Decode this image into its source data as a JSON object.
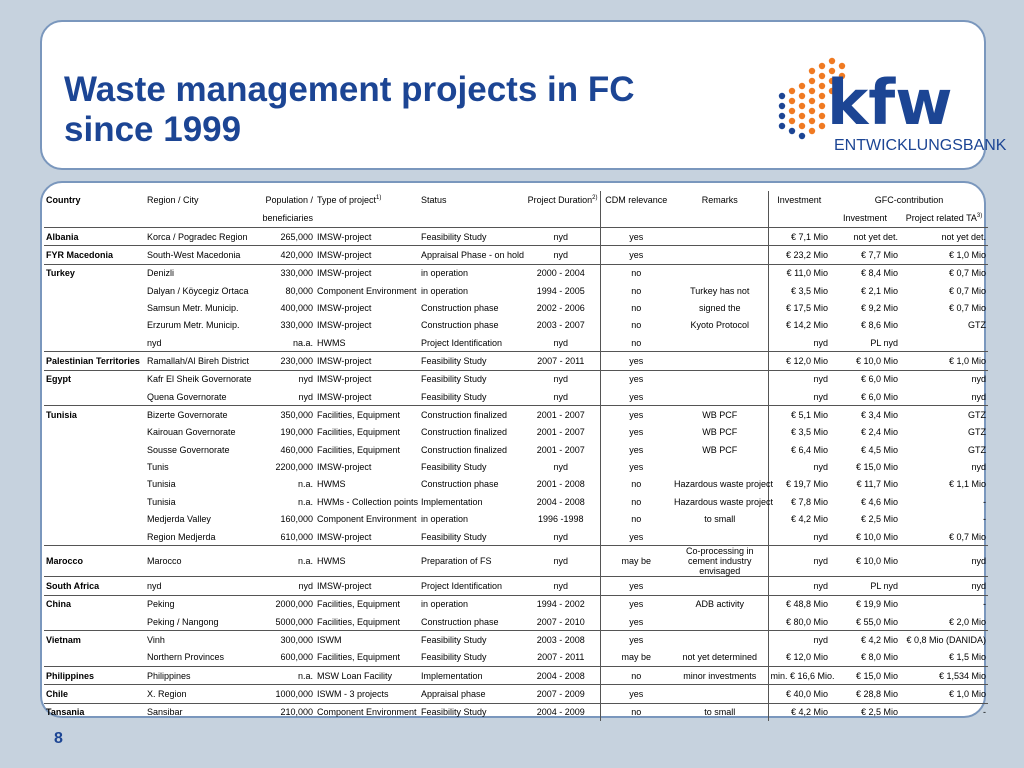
{
  "slide": {
    "title": "Waste management projects in FC since 1999",
    "page_number": "8"
  },
  "logo": {
    "wordmark": "kfw",
    "subtitle": "ENTWICKLUNGSBANK",
    "colors": {
      "orange": "#f07a22",
      "blue": "#1c4594"
    }
  },
  "table": {
    "headers": {
      "country": "Country",
      "region": "Region / City",
      "population_line1": "Population /",
      "population_line2": "beneficiaries",
      "type": "Type of project",
      "type_sup": "1)",
      "status": "Status",
      "duration": "Project Duration",
      "duration_sup": "2)",
      "cdm": "CDM relevance",
      "remarks": "Remarks",
      "investment": "Investment",
      "gfc": "GFC-contribution",
      "gfc_investment": "Investment",
      "gfc_ta": "Project related TA",
      "gfc_ta_sup": "3)"
    },
    "rows": [
      {
        "country": "Albania",
        "region": "Korca / Pogradec Region",
        "population": "265,000",
        "type": "IMSW-project",
        "status": "Feasibility Study",
        "duration": "nyd",
        "cdm": "yes",
        "remarks": "",
        "investment": "€   7,1 Mio",
        "gfc_inv": "not yet det.",
        "gfc_ta": "not yet det."
      },
      {
        "country": "FYR Macedonia",
        "region": "South-West Macedonia",
        "population": "420,000",
        "type": "IMSW-project",
        "status": "Appraisal Phase - on hold",
        "duration": "nyd",
        "cdm": "yes",
        "remarks": "",
        "investment": "€  23,2 Mio",
        "gfc_inv": "€   7,7 Mio",
        "gfc_ta": "€   1,0 Mio"
      },
      {
        "country": "Turkey",
        "region": "Denizli",
        "population": "330,000",
        "type": "IMSW-project",
        "status": "in operation",
        "duration": "2000 - 2004",
        "cdm": "no",
        "remarks": "",
        "investment": "€  11,0 Mio",
        "gfc_inv": "€   8,4 Mio",
        "gfc_ta": "€   0,7 Mio"
      },
      {
        "country": "",
        "region": "Dalyan / Köycegiz Ortaca",
        "population": "80,000",
        "type": "Component Environment",
        "status": "in operation",
        "duration": "1994 - 2005",
        "cdm": "no",
        "remarks": "Turkey has not",
        "investment": "€   3,5 Mio",
        "gfc_inv": "€   2,1 Mio",
        "gfc_ta": "€   0,7 Mio"
      },
      {
        "country": "",
        "region": "Samsun Metr. Municip.",
        "population": "400,000",
        "type": "IMSW-project",
        "status": "Construction phase",
        "duration": "2002 - 2006",
        "cdm": "no",
        "remarks": "signed the",
        "investment": "€  17,5 Mio",
        "gfc_inv": "€   9,2 Mio",
        "gfc_ta": "€   0,7 Mio"
      },
      {
        "country": "",
        "region": "Erzurum Metr. Municip.",
        "population": "330,000",
        "type": "IMSW-project",
        "status": "Construction phase",
        "duration": "2003 - 2007",
        "cdm": "no",
        "remarks": "Kyoto Protocol",
        "investment": "€  14,2 Mio",
        "gfc_inv": "€   8,6 Mio",
        "gfc_ta": "GTZ"
      },
      {
        "country": "",
        "region": "nyd",
        "population": "na.a.",
        "type": "HWMS",
        "status": "Project Identification",
        "duration": "nyd",
        "cdm": "no",
        "remarks": "",
        "investment": "nyd",
        "gfc_inv": "PL nyd",
        "gfc_ta": ""
      },
      {
        "country": "Palestinian Territories",
        "region": "Ramallah/Al Bireh District",
        "population": "230,000",
        "type": "IMSW-project",
        "status": "Feasibility Study",
        "duration": "2007 - 2011",
        "cdm": "yes",
        "remarks": "",
        "investment": "€  12,0 Mio",
        "gfc_inv": "€ 10,0 Mio",
        "gfc_ta": "€   1,0 Mio"
      },
      {
        "country": "Egypt",
        "region": "Kafr El Sheik Governorate",
        "population": "nyd",
        "type": "IMSW-project",
        "status": "Feasibility Study",
        "duration": "nyd",
        "cdm": "yes",
        "remarks": "",
        "investment": "nyd",
        "gfc_inv": "€   6,0 Mio",
        "gfc_ta": "nyd"
      },
      {
        "country": "",
        "region": "Quena Governorate",
        "population": "nyd",
        "type": "IMSW-project",
        "status": "Feasibility Study",
        "duration": "nyd",
        "cdm": "yes",
        "remarks": "",
        "investment": "nyd",
        "gfc_inv": "€   6,0 Mio",
        "gfc_ta": "nyd"
      },
      {
        "country": "Tunisia",
        "region": "Bizerte Governorate",
        "population": "350,000",
        "type": "Facilities, Equipment",
        "status": "Construction finalized",
        "duration": "2001 - 2007",
        "cdm": "yes",
        "remarks": "WB PCF",
        "investment": "€   5,1 Mio",
        "gfc_inv": "€   3,4 Mio",
        "gfc_ta": "GTZ"
      },
      {
        "country": "",
        "region": "Kairouan Governorate",
        "population": "190,000",
        "type": "Facilities, Equipment",
        "status": "Construction finalized",
        "duration": "2001 - 2007",
        "cdm": "yes",
        "remarks": "WB PCF",
        "investment": "€   3,5 Mio",
        "gfc_inv": "€   2,4 Mio",
        "gfc_ta": "GTZ"
      },
      {
        "country": "",
        "region": "Sousse Governorate",
        "population": "460,000",
        "type": "Facilities, Equipment",
        "status": "Construction finalized",
        "duration": "2001 - 2007",
        "cdm": "yes",
        "remarks": "WB PCF",
        "investment": "€   6,4 Mio",
        "gfc_inv": "€   4,5 Mio",
        "gfc_ta": "GTZ"
      },
      {
        "country": "",
        "region": "Tunis",
        "population": "2200,000",
        "type": "IMSW-project",
        "status": "Feasibility Study",
        "duration": "nyd",
        "cdm": "yes",
        "remarks": "",
        "investment": "nyd",
        "gfc_inv": "€ 15,0 Mio",
        "gfc_ta": "nyd"
      },
      {
        "country": "",
        "region": "Tunisia",
        "population": "n.a.",
        "type": "HWMS",
        "status": "Construction phase",
        "duration": "2001 - 2008",
        "cdm": "no",
        "remarks": "Hazardous waste project",
        "investment": "€  19,7 Mio",
        "gfc_inv": "€ 11,7 Mio",
        "gfc_ta": "€   1,1 Mio"
      },
      {
        "country": "",
        "region": "Tunisia",
        "population": "n.a.",
        "type": "HWMs - Collection points",
        "status": "Implementation",
        "duration": "2004 - 2008",
        "cdm": "no",
        "remarks": "Hazardous waste project",
        "investment": "€   7,8 Mio",
        "gfc_inv": "€   4,6 Mio",
        "gfc_ta": "-"
      },
      {
        "country": "",
        "region": "Medjerda Valley",
        "population": "160,000",
        "type": "Component Environment",
        "status": "in operation",
        "duration": "1996 -1998",
        "cdm": "no",
        "remarks": "to small",
        "investment": "€   4,2 Mio",
        "gfc_inv": "€   2,5 Mio",
        "gfc_ta": "-"
      },
      {
        "country": "",
        "region": "Region Medjerda",
        "population": "610,000",
        "type": "IMSW-project",
        "status": "Feasibility Study",
        "duration": "nyd",
        "cdm": "yes",
        "remarks": "",
        "investment": "nyd",
        "gfc_inv": "€ 10,0 Mio",
        "gfc_ta": "€ 0,7 Mio"
      },
      {
        "country": "Marocco",
        "region": "Marocco",
        "population": "n.a.",
        "type": "HWMS",
        "status": "Preparation of FS",
        "duration": "nyd",
        "cdm": "may be",
        "remarks": "Co-processing in cement industry envisaged",
        "investment": "nyd",
        "gfc_inv": "€ 10,0 Mio",
        "gfc_ta": "nyd"
      },
      {
        "country": "South Africa",
        "region": "nyd",
        "population": "nyd",
        "type": "IMSW-project",
        "status": "Project Identification",
        "duration": "nyd",
        "cdm": "yes",
        "remarks": "",
        "investment": "nyd",
        "gfc_inv": "PL nyd",
        "gfc_ta": "nyd"
      },
      {
        "country": "China",
        "region": "Peking",
        "population": "2000,000",
        "type": "Facilities, Equipment",
        "status": "in operation",
        "duration": "1994 - 2002",
        "cdm": "yes",
        "remarks": "ADB activity",
        "investment": "€  48,8 Mio",
        "gfc_inv": "€ 19,9 Mio",
        "gfc_ta": "-"
      },
      {
        "country": "",
        "region": "Peking / Nangong",
        "population": "5000,000",
        "type": "Facilities, Equipment",
        "status": "Construction phase",
        "duration": "2007 - 2010",
        "cdm": "yes",
        "remarks": "",
        "investment": "€ 80,0 Mio",
        "gfc_inv": "€ 55,0 Mio",
        "gfc_ta": "€ 2,0 Mio"
      },
      {
        "country": "Vietnam",
        "region": "Vinh",
        "population": "300,000",
        "type": "ISWM",
        "status": "Feasibility Study",
        "duration": "2003 - 2008",
        "cdm": "yes",
        "remarks": "",
        "investment": "nyd",
        "gfc_inv": "€ 4,2 Mio",
        "gfc_ta": "€ 0,8 Mio (DANIDA)"
      },
      {
        "country": "",
        "region": "Northern Provinces",
        "population": "600,000",
        "type": "Facilities, Equipment",
        "status": "Feasibility Study",
        "duration": "2007 - 2011",
        "cdm": "may be",
        "remarks": "not yet determined",
        "investment": "€ 12,0 Mio",
        "gfc_inv": "€ 8,0 Mio",
        "gfc_ta": "€ 1,5 Mio"
      },
      {
        "country": "Philippines",
        "region": "Philippines",
        "population": "n.a.",
        "type": "MSW Loan Facility",
        "status": "Implementation",
        "duration": "2004 - 2008",
        "cdm": "no",
        "remarks": "minor investments",
        "investment": "min. € 16,6 Mio.",
        "gfc_inv": "€ 15,0 Mio",
        "gfc_ta": "€   1,534 Mio"
      },
      {
        "country": "Chile",
        "region": "X. Region",
        "population": "1000,000",
        "type": "ISWM - 3 projects",
        "status": "Appraisal phase",
        "duration": "2007 - 2009",
        "cdm": "yes",
        "remarks": "",
        "investment": "€  40,0 Mio",
        "gfc_inv": "€ 28,8 Mio",
        "gfc_ta": "€   1,0 Mio"
      },
      {
        "country": "Tansania",
        "region": "Sansibar",
        "population": "210,000",
        "type": "Component Environment",
        "status": "Feasibility Study",
        "duration": "2004 - 2009",
        "cdm": "no",
        "remarks": "to small",
        "investment": "€   4,2 Mio",
        "gfc_inv": "€   2,5 Mio",
        "gfc_ta": "-"
      }
    ]
  }
}
